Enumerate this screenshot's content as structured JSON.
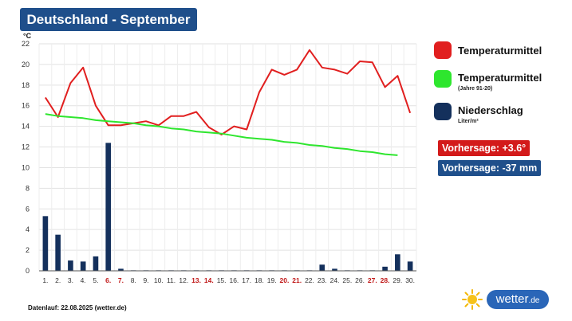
{
  "header": {
    "title": "Deutschland - September"
  },
  "legend": {
    "temp": {
      "label": "Temperaturmittel",
      "color": "#e11f1f"
    },
    "norm": {
      "label": "Temperaturmittel",
      "sub": "(Jahre 91-20)",
      "color": "#2ee62e"
    },
    "precip": {
      "label": "Niederschlag",
      "sub": "Liter/m²",
      "color": "#14305c"
    }
  },
  "forecast": {
    "temp": "Vorhersage: +3.6°",
    "temp_color": "#d31a1a",
    "precip": "Vorhersage: -37 mm",
    "precip_color": "#1f4f8b"
  },
  "footer": {
    "text": "Datenlauf: 22.08.2025 (wetter.de)"
  },
  "brand": {
    "name": "wetter",
    "tld": ".de",
    "icon": "sun-icon"
  },
  "chart_data": {
    "type": "line",
    "ylabel": "°C",
    "ylim": [
      0,
      22
    ],
    "yticks": [
      0,
      2,
      4,
      6,
      8,
      10,
      12,
      14,
      16,
      18,
      20,
      22
    ],
    "grid": true,
    "categories": [
      "1.",
      "2.",
      "3.",
      "4.",
      "5.",
      "6.",
      "7.",
      "8.",
      "9.",
      "10.",
      "11.",
      "12.",
      "13.",
      "14.",
      "15.",
      "16.",
      "17.",
      "18.",
      "19.",
      "20.",
      "21.",
      "22.",
      "23.",
      "24.",
      "25.",
      "26.",
      "27.",
      "28.",
      "29.",
      "30."
    ],
    "weekend_days": [
      "6.",
      "7.",
      "13.",
      "14.",
      "20.",
      "21.",
      "27.",
      "28."
    ],
    "weekend_color": "#c01818",
    "series": [
      {
        "name": "Temperaturmittel",
        "kind": "line",
        "color": "#e11f1f",
        "values": [
          16.8,
          14.9,
          18.2,
          19.7,
          16.0,
          14.1,
          14.1,
          14.3,
          14.5,
          14.1,
          15.0,
          15.0,
          15.4,
          13.9,
          13.2,
          14.0,
          13.7,
          17.3,
          19.5,
          19.0,
          19.5,
          21.4,
          19.7,
          19.5,
          19.1,
          20.3,
          20.2,
          17.8,
          18.9,
          15.3
        ]
      },
      {
        "name": "Temperaturmittel (Jahre 91-20)",
        "kind": "line",
        "color": "#2ee62e",
        "values": [
          15.2,
          15.0,
          14.9,
          14.8,
          14.6,
          14.5,
          14.4,
          14.3,
          14.1,
          14.0,
          13.8,
          13.7,
          13.5,
          13.4,
          13.3,
          13.1,
          12.9,
          12.8,
          12.7,
          12.5,
          12.4,
          12.2,
          12.1,
          11.9,
          11.8,
          11.6,
          11.5,
          11.3,
          11.2,
          null
        ]
      },
      {
        "name": "Niederschlag",
        "kind": "bar",
        "color": "#14305c",
        "values": [
          5.3,
          3.5,
          1.0,
          0.9,
          1.4,
          12.4,
          0.2,
          0.05,
          0.05,
          0.05,
          0.05,
          0.05,
          0.05,
          0.05,
          0.05,
          0.05,
          0.05,
          0.05,
          0.05,
          0.05,
          0.05,
          0.05,
          0.6,
          0.2,
          0.05,
          0.05,
          0.05,
          0.4,
          1.6,
          0.9
        ]
      }
    ]
  }
}
